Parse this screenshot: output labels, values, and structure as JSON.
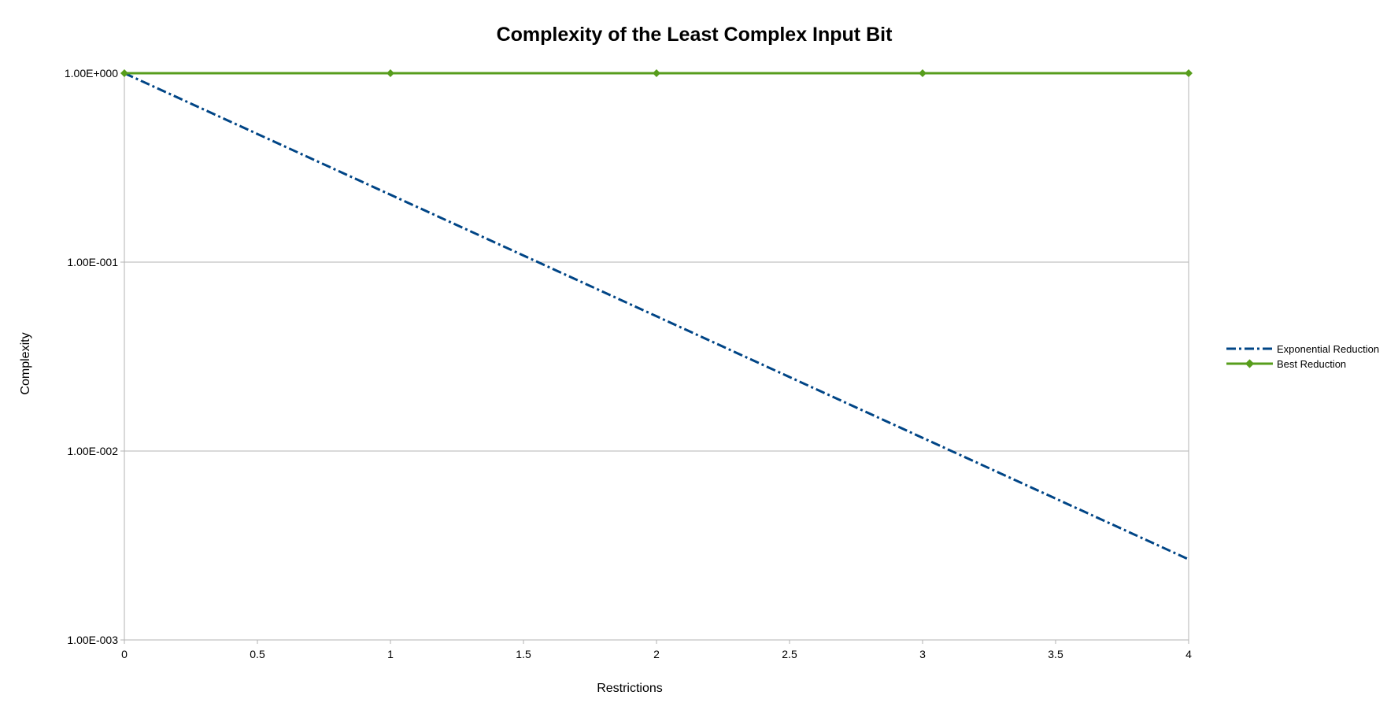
{
  "chart_data": {
    "type": "line",
    "title": "Complexity of the Least Complex Input Bit",
    "xlabel": "Restrictions",
    "ylabel": "Complexity",
    "xlim": [
      0,
      4
    ],
    "ylim": [
      0.001,
      1
    ],
    "y_scale": "log",
    "x_ticks": [
      "0",
      "0.5",
      "1",
      "1.5",
      "2",
      "2.5",
      "3",
      "3.5",
      "4"
    ],
    "x_tick_values": [
      0,
      0.5,
      1,
      1.5,
      2,
      2.5,
      3,
      3.5,
      4
    ],
    "y_ticks": [
      "1.00E+000",
      "1.00E-001",
      "1.00E-002",
      "1.00E-003"
    ],
    "y_tick_values": [
      1,
      0.1,
      0.01,
      0.001
    ],
    "grid": "horizontal",
    "legend_position": "right",
    "series": [
      {
        "name": "Exponential Reduction",
        "color": "#004586",
        "style": "dash-dot",
        "markers": false,
        "x": [
          0,
          1,
          2,
          3,
          4
        ],
        "y": [
          1,
          0.2273,
          0.0517,
          0.01175,
          0.00267
        ]
      },
      {
        "name": "Best Reduction",
        "color": "#579d1c",
        "style": "solid",
        "markers": true,
        "x": [
          0,
          1,
          2,
          3,
          4
        ],
        "y": [
          1,
          1,
          1,
          1,
          1
        ]
      }
    ]
  }
}
